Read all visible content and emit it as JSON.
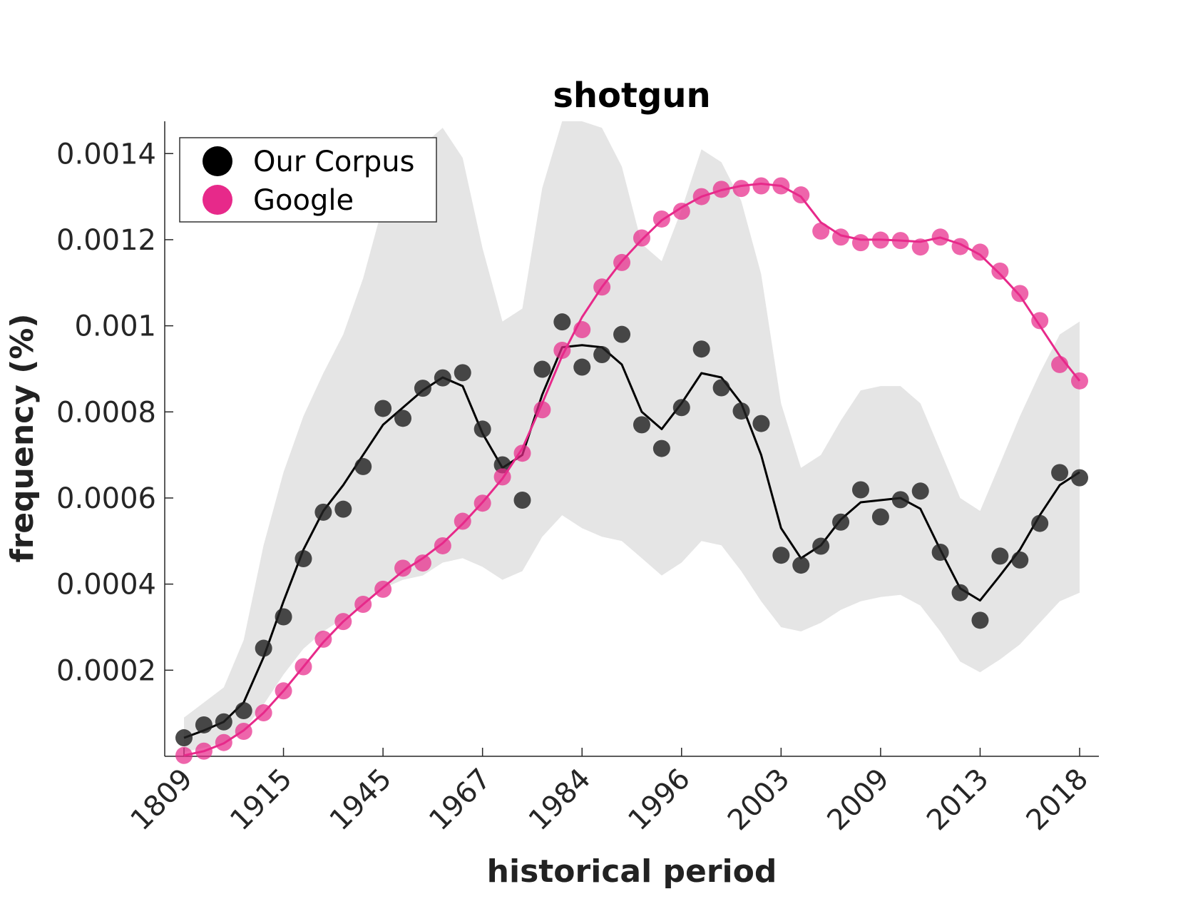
{
  "chart_data": {
    "type": "line",
    "title": "shotgun",
    "xlabel": "historical period",
    "ylabel": "frequency (%)",
    "x_tick_labels": [
      "1809",
      "1915",
      "1945",
      "1967",
      "1984",
      "1996",
      "2003",
      "2009",
      "2013",
      "2018"
    ],
    "y_ticks": [
      0.0002,
      0.0004,
      0.0006,
      0.0008,
      0.001,
      0.0012,
      0.0014
    ],
    "y_tick_labels": [
      "0.0002",
      "0.0004",
      "0.0006",
      "0.0008",
      "0.001",
      "0.0012",
      "0.0014"
    ],
    "ylim": [
      0,
      0.001475
    ],
    "x_index_range": [
      0,
      45
    ],
    "grid": false,
    "legend_position": "top-left",
    "colors": {
      "corpus": "#000000",
      "google": "#e7298a",
      "band": "#e5e5e5"
    },
    "series": [
      {
        "name": "Our Corpus",
        "points": [
          4.3e-05,
          7.3e-05,
          8e-05,
          0.000106,
          0.000251,
          0.000324,
          0.000459,
          0.000567,
          0.000574,
          0.000673,
          0.000808,
          0.000785,
          0.000855,
          0.000879,
          0.000891,
          0.00076,
          0.000677,
          0.000595,
          0.000899,
          0.001009,
          0.000904,
          0.000933,
          0.00098,
          0.00077,
          0.000715,
          0.00081,
          0.000946,
          0.000856,
          0.000802,
          0.000773,
          0.000467,
          0.000444,
          0.000488,
          0.000544,
          0.000619,
          0.000556,
          0.000596,
          0.000616,
          0.000474,
          0.00038,
          0.000316,
          0.000465,
          0.000456,
          0.000541,
          0.000659,
          0.000647
        ],
        "smooth": [
          4.3e-05,
          6e-05,
          8e-05,
          0.000125,
          0.00023,
          0.00036,
          0.00048,
          0.00057,
          0.00063,
          0.0007,
          0.00077,
          0.00081,
          0.00085,
          0.00088,
          0.00086,
          0.00075,
          0.00067,
          0.0007,
          0.00084,
          0.00095,
          0.000955,
          0.00095,
          0.00091,
          0.0008,
          0.00076,
          0.00082,
          0.00089,
          0.00088,
          0.00082,
          0.0007,
          0.00053,
          0.00046,
          0.00049,
          0.00055,
          0.00059,
          0.000595,
          0.0006,
          0.000575,
          0.00048,
          0.00039,
          0.000362,
          0.00042,
          0.00048,
          0.00056,
          0.00063,
          0.00066
        ],
        "band_upper": [
          9e-05,
          0.000125,
          0.00016,
          0.00027,
          0.00049,
          0.00066,
          0.00079,
          0.00089,
          0.00098,
          0.00111,
          0.00128,
          0.00137,
          0.00142,
          0.00146,
          0.00139,
          0.00118,
          0.00101,
          0.00104,
          0.00132,
          0.001475,
          0.001475,
          0.00146,
          0.00137,
          0.00119,
          0.00115,
          0.00127,
          0.00141,
          0.00138,
          0.00129,
          0.00112,
          0.00082,
          0.00067,
          0.0007,
          0.00078,
          0.00085,
          0.00086,
          0.00086,
          0.00082,
          0.00071,
          0.0006,
          0.00057,
          0.00068,
          0.00079,
          0.00089,
          0.00098,
          0.00101
        ],
        "band_lower": [
          1e-05,
          2e-05,
          3e-05,
          6e-05,
          0.00012,
          0.00019,
          0.00025,
          0.00029,
          0.00032,
          0.00035,
          0.00039,
          0.00041,
          0.00042,
          0.00045,
          0.00046,
          0.00044,
          0.00041,
          0.00043,
          0.00051,
          0.00056,
          0.00053,
          0.00051,
          0.0005,
          0.00046,
          0.00042,
          0.00045,
          0.0005,
          0.00049,
          0.00043,
          0.00036,
          0.0003,
          0.00029,
          0.00031,
          0.00034,
          0.00036,
          0.00037,
          0.000375,
          0.00035,
          0.00029,
          0.00022,
          0.000195,
          0.000225,
          0.00026,
          0.00031,
          0.00036,
          0.00038
        ]
      },
      {
        "name": "Google",
        "points": [
          2e-06,
          1.2e-05,
          3.2e-05,
          5.8e-05,
          0.000101,
          0.000152,
          0.000208,
          0.000272,
          0.000313,
          0.000353,
          0.000388,
          0.000437,
          0.000449,
          0.000489,
          0.000546,
          0.000588,
          0.000649,
          0.000704,
          0.000805,
          0.000943,
          0.000991,
          0.00109,
          0.001147,
          0.001204,
          0.001248,
          0.001266,
          0.0013,
          0.001317,
          0.001319,
          0.001325,
          0.001325,
          0.001304,
          0.00122,
          0.001206,
          0.001193,
          0.001199,
          0.001198,
          0.001183,
          0.001206,
          0.001184,
          0.001171,
          0.001127,
          0.001075,
          0.001012,
          0.00091,
          0.000872
        ],
        "smooth": [
          2e-06,
          1.2e-05,
          3e-05,
          6e-05,
          0.000101,
          0.000152,
          0.000208,
          0.000265,
          0.000313,
          0.000353,
          0.000392,
          0.00043,
          0.00046,
          0.000495,
          0.00054,
          0.00059,
          0.000645,
          0.000715,
          0.00082,
          0.00093,
          0.00102,
          0.00109,
          0.00115,
          0.0012,
          0.001245,
          0.001275,
          0.0013,
          0.001315,
          0.001325,
          0.00133,
          0.001325,
          0.0013,
          0.00124,
          0.00121,
          0.0012,
          0.0012,
          0.001198,
          0.001195,
          0.001205,
          0.00119,
          0.001165,
          0.00112,
          0.00107,
          0.001,
          0.00093,
          0.000872
        ]
      }
    ]
  }
}
